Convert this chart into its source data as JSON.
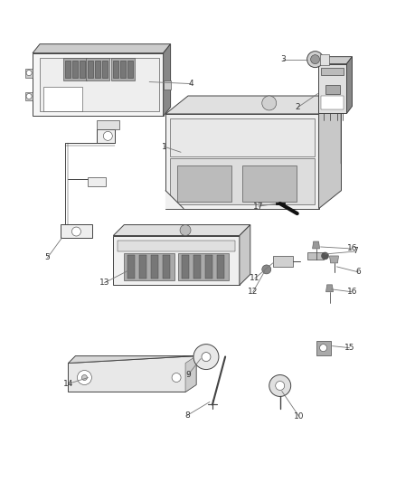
{
  "background_color": "#ffffff",
  "line_color": "#444444",
  "label_color": "#333333",
  "light_gray": "#e8e8e8",
  "mid_gray": "#cccccc",
  "dark_gray": "#888888",
  "figsize": [
    4.38,
    5.33
  ],
  "dpi": 100
}
